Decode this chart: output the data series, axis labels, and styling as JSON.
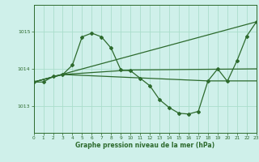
{
  "title": "Graphe pression niveau de la mer (hPa)",
  "bg_color": "#cff0ea",
  "grid_color": "#aaddcc",
  "line_color": "#2d6a2d",
  "xlim": [
    0,
    23
  ],
  "ylim": [
    1012.3,
    1015.7
  ],
  "yticks": [
    1013,
    1014,
    1015
  ],
  "xticks": [
    0,
    1,
    2,
    3,
    4,
    5,
    6,
    7,
    8,
    9,
    10,
    11,
    12,
    13,
    14,
    15,
    16,
    17,
    18,
    19,
    20,
    21,
    22,
    23
  ],
  "series1_x": [
    0,
    1,
    2,
    3,
    4,
    5,
    6,
    7,
    8,
    9,
    10,
    11,
    12,
    13,
    14,
    15,
    16,
    17,
    18,
    19,
    20,
    21,
    22,
    23
  ],
  "series1_y": [
    1013.65,
    1013.65,
    1013.8,
    1013.85,
    1014.1,
    1014.85,
    1014.95,
    1014.85,
    1014.55,
    1013.97,
    1013.95,
    1013.75,
    1013.55,
    1013.18,
    1012.97,
    1012.82,
    1012.8,
    1012.87,
    1013.68,
    1014.0,
    1013.67,
    1014.22,
    1014.87,
    1015.25
  ],
  "series2_x": [
    0,
    23
  ],
  "series2_y": [
    1013.65,
    1015.25
  ],
  "series3_x": [
    0,
    3,
    10,
    23
  ],
  "series3_y": [
    1013.65,
    1013.85,
    1013.97,
    1014.0
  ],
  "series4_x": [
    0,
    3,
    18,
    23
  ],
  "series4_y": [
    1013.65,
    1013.85,
    1013.68,
    1013.68
  ]
}
